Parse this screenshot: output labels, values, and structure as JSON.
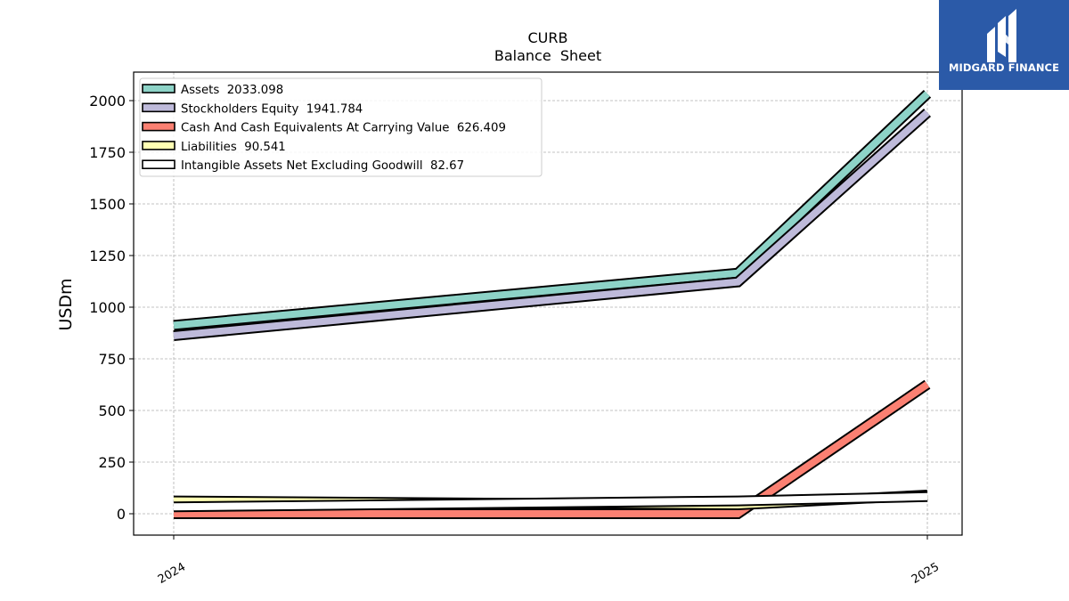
{
  "chart_data": {
    "type": "line",
    "title": "CURB",
    "subtitle": "Balance  Sheet",
    "ylabel": "USDm",
    "xlabel": "",
    "x": [
      "2024-01-01",
      "2024-10-01",
      "2025-01-01"
    ],
    "x_ticks": [
      "2024",
      "2025"
    ],
    "ylim": [
      -100,
      2120
    ],
    "y_ticks": [
      0,
      250,
      500,
      750,
      1000,
      1250,
      1500,
      1750,
      2000
    ],
    "grid": true,
    "legend_position": "top-left",
    "series": [
      {
        "name": "Assets  2033.098",
        "values": [
          912,
          1165,
          2033.098
        ],
        "color": "#8dd3c7"
      },
      {
        "name": "Stockholders Equity  1941.784",
        "values": [
          862,
          1122,
          1941.784
        ],
        "color": "#bebada"
      },
      {
        "name": "Cash And Cash Equivalents At Carrying Value  626.409",
        "values": [
          0,
          0,
          626.409
        ],
        "color": "#fb8072"
      },
      {
        "name": "Liabilities  90.541",
        "values": [
          62,
          43,
          90.541
        ],
        "color": "#ffffb3"
      },
      {
        "name": "Intangible Assets Net Excluding Goodwill  82.67",
        "values": [
          33,
          62,
          82.67
        ],
        "color": "#ffffff"
      }
    ]
  },
  "logo": {
    "text": "MIDGARD FINANCE",
    "icon": "midgard-logo-icon",
    "background": "#2b5aa8"
  }
}
